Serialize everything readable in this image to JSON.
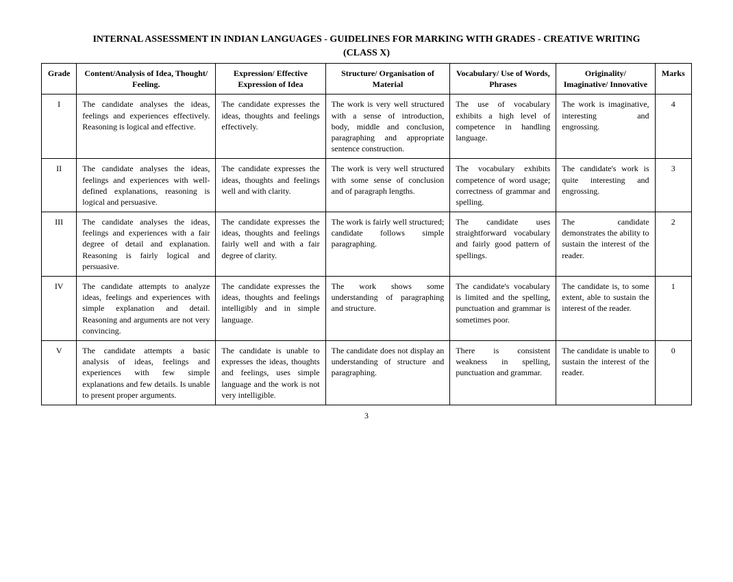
{
  "title": "INTERNAL ASSESSMENT IN INDIAN LANGUAGES - GUIDELINES FOR MARKING WITH GRADES - CREATIVE WRITING",
  "subtitle": "(CLASS X)",
  "pageNumber": "3",
  "headers": {
    "grade": "Grade",
    "content": "Content/Analysis of Idea, Thought/ Feeling.",
    "expression": "Expression/ Effective Expression of Idea",
    "structure": "Structure/ Organisation of Material",
    "vocabulary": "Vocabulary/ Use of Words, Phrases",
    "originality": "Originality/ Imaginative/ Innovative",
    "marks": "Marks"
  },
  "rows": [
    {
      "grade": "I",
      "content": "The candidate analyses the ideas, feelings and experiences effectively. Reasoning is logical and effective.",
      "expression": "The candidate expresses the ideas, thoughts and feelings effectively.",
      "structure": "The work is very well structured with a sense of introduction, body, middle and conclusion, paragraphing and appropriate sentence construction.",
      "vocabulary": "The use of vocabulary exhibits a high level of competence in handling language.",
      "originality": "The work is imaginative, interesting and engrossing.",
      "marks": "4"
    },
    {
      "grade": "II",
      "content": "The candidate analyses the ideas, feelings and experiences with well-defined explanations, reasoning is logical and persuasive.",
      "expression": "The candidate expresses the ideas, thoughts and feelings well and with clarity.",
      "structure": "The work is very well structured with some sense of conclusion and of paragraph lengths.",
      "vocabulary": "The vocabulary exhibits competence of word usage; correctness of grammar and spelling.",
      "originality": "The candidate's work is quite interesting and engrossing.",
      "marks": "3"
    },
    {
      "grade": "III",
      "content": "The candidate analyses the ideas, feelings and experiences with a fair degree of detail and explanation. Reasoning is fairly logical and persuasive.",
      "expression": "The candidate expresses the ideas, thoughts and feelings fairly well and with a fair degree of clarity.",
      "structure": "The work is fairly well structured; candidate follows simple paragraphing.",
      "vocabulary": "The candidate uses straightforward vocabulary and fairly good pattern of spellings.",
      "originality": "The candidate demonstrates the ability to sustain the interest of the reader.",
      "marks": "2"
    },
    {
      "grade": "IV",
      "content": "The candidate attempts to analyze ideas, feelings and experiences with simple explanation and detail. Reasoning and arguments are not very convincing.",
      "expression": "The candidate expresses the ideas, thoughts and feelings intelligibly and in simple language.",
      "structure": "The work shows some understanding of paragraphing and structure.",
      "vocabulary": "The candidate's vocabulary is limited and the spelling, punctuation and grammar is sometimes poor.",
      "originality": "The candidate is, to some extent, able to sustain the interest of the reader.",
      "marks": "1"
    },
    {
      "grade": "V",
      "content": "The candidate attempts a basic analysis of ideas, feelings and experiences with few simple explanations and few details. Is unable to present proper arguments.",
      "expression": "The candidate is unable to expresses the ideas, thoughts and feelings, uses simple language and the work is not very intelligible.",
      "structure": "The candidate does not display an understanding of structure and paragraphing.",
      "vocabulary": "There is consistent weakness in spelling, punctuation and grammar.",
      "originality": "The candidate is unable to sustain the interest of the reader.",
      "marks": "0"
    }
  ]
}
